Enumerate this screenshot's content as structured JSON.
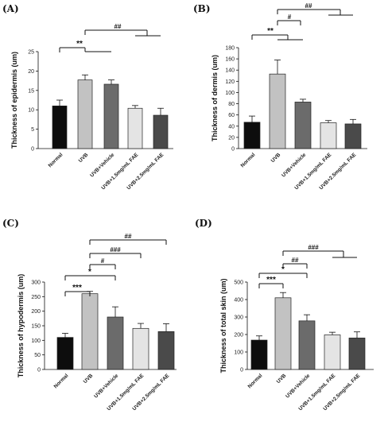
{
  "chart_data": [
    {
      "type": "bar",
      "panel_label": "(A)",
      "ylabel": "Thickness of epidermis (um)",
      "ylim": [
        0,
        25
      ],
      "yticks": [
        0,
        5,
        10,
        15,
        20,
        25
      ],
      "categories": [
        "Normal",
        "UVB",
        "UVB+Vehicle",
        "UVB+1.5mg/mL FAE",
        "UVB+2.5mg/mL FAE"
      ],
      "values": [
        11.0,
        17.7,
        16.6,
        10.4,
        8.6
      ],
      "errors": [
        1.5,
        1.3,
        1.1,
        0.7,
        1.8
      ],
      "bar_colors": [
        "#0d0d0d",
        "#c2c2c2",
        "#6b6b6b",
        "#e4e4e4",
        "#4a4a4a"
      ],
      "significance": [
        {
          "label": "**",
          "from": 0,
          "to": 1,
          "to_group": [
            1,
            2
          ]
        },
        {
          "label": "##",
          "from": 1,
          "to_group": [
            3,
            4
          ]
        }
      ]
    },
    {
      "type": "bar",
      "panel_label": "(B)",
      "ylabel": "Thickness of dermis (um)",
      "ylim": [
        0,
        180
      ],
      "yticks": [
        0,
        20,
        40,
        60,
        80,
        100,
        120,
        140,
        160,
        180
      ],
      "categories": [
        "Normal",
        "UVB",
        "UVB+Vehicle",
        "UVB+1.5mg/mL FAE",
        "UVB+2.5mg/mL FAE"
      ],
      "values": [
        47,
        133,
        83,
        46,
        44
      ],
      "errors": [
        11,
        25,
        5,
        4,
        8
      ],
      "bar_colors": [
        "#0d0d0d",
        "#c2c2c2",
        "#6b6b6b",
        "#e4e4e4",
        "#4a4a4a"
      ],
      "significance": [
        {
          "label": "**",
          "from": 0,
          "to_group": [
            1,
            2
          ]
        },
        {
          "label": "#",
          "from": 1,
          "to": 3
        },
        {
          "label": "##",
          "from": 1,
          "to_group": [
            3,
            4
          ]
        }
      ]
    },
    {
      "type": "bar",
      "panel_label": "(C)",
      "ylabel": "Thickness of hypodermis (um)",
      "ylim": [
        0,
        300
      ],
      "yticks": [
        0,
        50,
        100,
        150,
        200,
        250,
        300
      ],
      "categories": [
        "Normal",
        "UVB",
        "UVB+Vehicle",
        "UVB+1.5mg/mL FAE",
        "UVB+2.5mg/mL FAE"
      ],
      "values": [
        110,
        260,
        180,
        141,
        130
      ],
      "errors": [
        14,
        8,
        35,
        17,
        27
      ],
      "bar_colors": [
        "#0d0d0d",
        "#c2c2c2",
        "#6b6b6b",
        "#e4e4e4",
        "#4a4a4a"
      ],
      "significance": [
        {
          "label": "***",
          "from": 0,
          "to": 1
        },
        {
          "label": "*",
          "from": 0,
          "to": 2
        },
        {
          "label": "#",
          "from": 1,
          "to": 2
        },
        {
          "label": "###",
          "from": 1,
          "to": 3
        },
        {
          "label": "##",
          "from": 1,
          "to": 4
        }
      ]
    },
    {
      "type": "bar",
      "panel_label": "(D)",
      "ylabel": "Thickness of total skin (um)",
      "ylim": [
        0,
        500
      ],
      "yticks": [
        0,
        100,
        200,
        300,
        400,
        500
      ],
      "categories": [
        "Normal",
        "UVB",
        "UVB+Vehicle",
        "UVB+1.5mg/mL FAE",
        "UVB+2.5mg/mL FAE"
      ],
      "values": [
        168,
        410,
        278,
        198,
        180
      ],
      "errors": [
        24,
        30,
        35,
        15,
        35
      ],
      "bar_colors": [
        "#0d0d0d",
        "#c2c2c2",
        "#6b6b6b",
        "#e4e4e4",
        "#4a4a4a"
      ],
      "significance": [
        {
          "label": "***",
          "from": 0,
          "to": 1
        },
        {
          "label": "*",
          "from": 0,
          "to": 2
        },
        {
          "label": "##",
          "from": 1,
          "to": 2
        },
        {
          "label": "###",
          "from": 1,
          "to_group": [
            3,
            4
          ]
        }
      ]
    }
  ]
}
